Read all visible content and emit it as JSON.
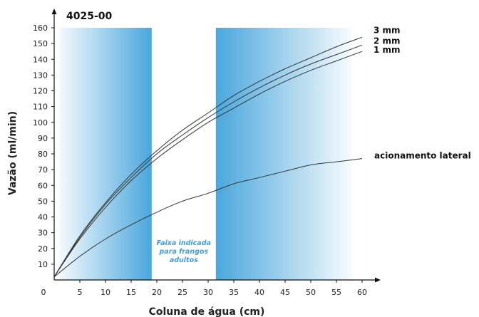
{
  "chart_data": {
    "type": "line",
    "title": "4025-00",
    "xlabel": "Coluna de água (cm)",
    "ylabel": "Vazão (ml/min)",
    "xlim": [
      0,
      60
    ],
    "ylim": [
      0,
      160
    ],
    "x_ticks": [
      0,
      5,
      10,
      15,
      20,
      25,
      30,
      35,
      40,
      45,
      50,
      55,
      60
    ],
    "y_ticks": [
      10,
      20,
      30,
      40,
      50,
      60,
      70,
      80,
      90,
      100,
      110,
      120,
      130,
      140,
      150,
      160
    ],
    "grid": false,
    "x": [
      0,
      5,
      10,
      15,
      20,
      25,
      30,
      35,
      40,
      45,
      50,
      55,
      60
    ],
    "series": [
      {
        "name": "3 mm",
        "values": [
          2,
          28,
          49,
          67,
          82,
          95,
          106,
          117,
          126,
          134,
          141,
          148,
          154
        ]
      },
      {
        "name": "2 mm",
        "values": [
          2,
          27,
          48,
          65,
          80,
          92,
          103,
          113,
          122,
          130,
          137,
          143,
          149
        ]
      },
      {
        "name": "1 mm",
        "values": [
          2,
          26,
          46,
          63,
          77,
          89,
          100,
          109,
          118,
          126,
          133,
          139,
          145
        ]
      },
      {
        "name": "acionamento lateral",
        "values": [
          2,
          15,
          26,
          35,
          43,
          50,
          55,
          61,
          65,
          69,
          73,
          75,
          77
        ]
      }
    ],
    "bands": [
      {
        "x_from": 1,
        "x_to": 19,
        "fade": "left"
      },
      {
        "x_from": 31.5,
        "x_to": 58,
        "fade": "right"
      }
    ],
    "band_note": [
      "Faixa indicada",
      "para frangos",
      "adultos"
    ],
    "colors": {
      "line": "#333333",
      "band": "#4aa7dd",
      "note": "#3aa0dc",
      "axis": "#111111"
    }
  }
}
